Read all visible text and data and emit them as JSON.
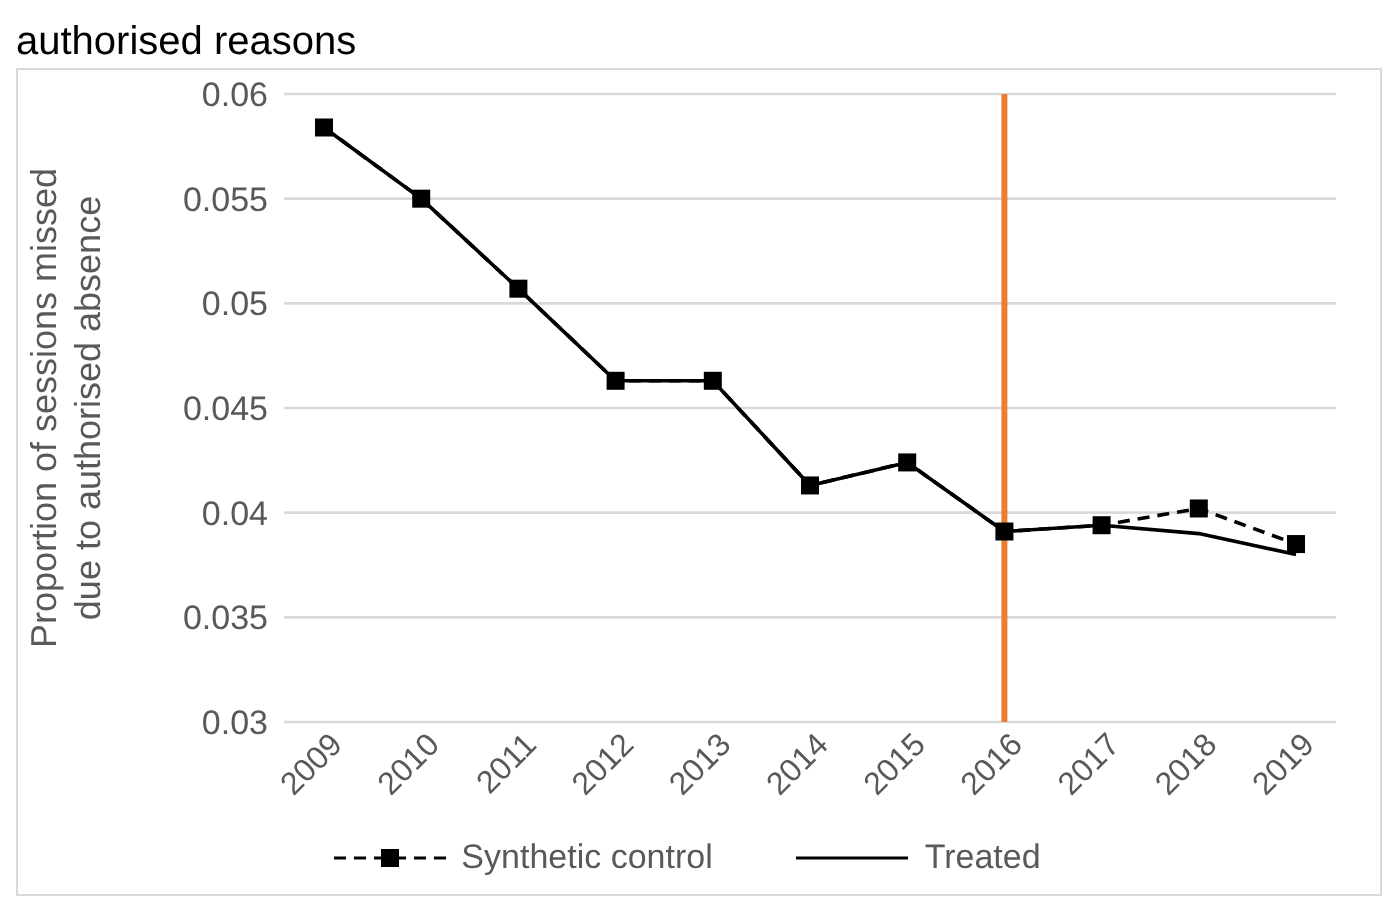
{
  "chart_data": {
    "type": "line",
    "title": "authorised reasons",
    "ylabel": "Proportion of sessions missed due to authorised absence",
    "categories": [
      "2009",
      "2010",
      "2011",
      "2012",
      "2013",
      "2014",
      "2015",
      "2016",
      "2017",
      "2018",
      "2019"
    ],
    "series": [
      {
        "name": "Synthetic control",
        "color": "#000000",
        "marker": "square",
        "line_style": "dashed",
        "values": [
          0.0584,
          0.055,
          0.0507,
          0.0463,
          0.0463,
          0.0413,
          0.0424,
          0.0391,
          0.0394,
          0.0402,
          0.0385
        ]
      },
      {
        "name": "Treated",
        "color": "#000000",
        "marker": "none",
        "line_style": "solid",
        "values": [
          0.0584,
          0.055,
          0.0507,
          0.0463,
          0.0463,
          0.0413,
          0.0424,
          0.0391,
          0.0394,
          0.039,
          0.038
        ]
      }
    ],
    "ylim": [
      0.03,
      0.06
    ],
    "yticks": [
      0.03,
      0.035,
      0.04,
      0.045,
      0.05,
      0.055,
      0.06
    ],
    "grid": "y",
    "legend": "bottom",
    "ref_lines": [
      {
        "axis": "x",
        "value": "2016",
        "color": "#ed7d31"
      }
    ]
  }
}
